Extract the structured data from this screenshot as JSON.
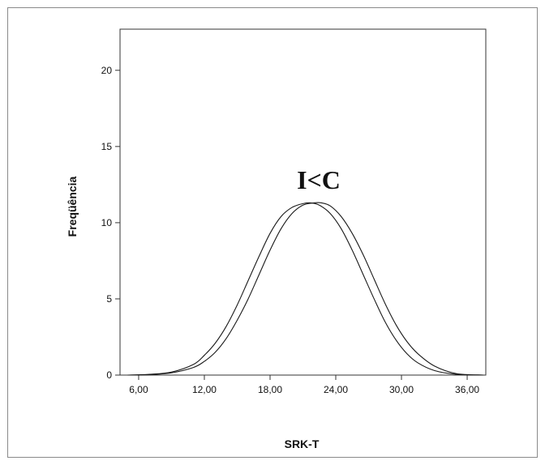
{
  "chart_data": {
    "type": "line",
    "title": "",
    "xlabel": "SRK-T",
    "ylabel": "Freqüência",
    "xlim": [
      4.3,
      37.7
    ],
    "ylim": [
      0,
      22.7
    ],
    "x_ticks": [
      {
        "value": 6,
        "label": "6,00"
      },
      {
        "value": 12,
        "label": "12,00"
      },
      {
        "value": 18,
        "label": "18,00"
      },
      {
        "value": 24,
        "label": "24,00"
      },
      {
        "value": 30,
        "label": "30,00"
      },
      {
        "value": 36,
        "label": "36,00"
      }
    ],
    "y_ticks": [
      {
        "value": 0,
        "label": "0"
      },
      {
        "value": 5,
        "label": "5"
      },
      {
        "value": 10,
        "label": "10"
      },
      {
        "value": 15,
        "label": "15"
      },
      {
        "value": 20,
        "label": "20"
      }
    ],
    "annotation": "I<C",
    "series": [
      {
        "style": "solid",
        "x": [
          5.0,
          7.0,
          9.0,
          11.0,
          12.0,
          13.0,
          14.0,
          15.0,
          16.0,
          17.0,
          18.0,
          19.0,
          20.0,
          21.0,
          21.7,
          22.5,
          23.5,
          24.5,
          25.5,
          26.5,
          27.5,
          28.5,
          29.5,
          30.5,
          31.5,
          33.0,
          35.0,
          37.5
        ],
        "y": [
          0.0,
          0.05,
          0.2,
          0.7,
          1.3,
          2.1,
          3.2,
          4.6,
          6.2,
          7.8,
          9.3,
          10.4,
          11.0,
          11.25,
          11.3,
          11.15,
          10.6,
          9.6,
          8.2,
          6.6,
          5.0,
          3.5,
          2.3,
          1.4,
          0.8,
          0.3,
          0.05,
          0.0
        ]
      },
      {
        "style": "solid",
        "x": [
          5.0,
          7.0,
          9.0,
          11.0,
          12.0,
          13.0,
          14.0,
          15.0,
          16.0,
          17.0,
          18.0,
          19.0,
          20.0,
          21.0,
          22.0,
          22.7,
          23.5,
          24.5,
          25.5,
          26.5,
          27.5,
          28.5,
          29.5,
          30.5,
          31.5,
          33.0,
          35.0,
          37.5
        ],
        "y": [
          0.0,
          0.03,
          0.15,
          0.5,
          0.9,
          1.5,
          2.4,
          3.6,
          5.0,
          6.6,
          8.2,
          9.6,
          10.6,
          11.15,
          11.3,
          11.3,
          11.1,
          10.4,
          9.3,
          7.9,
          6.3,
          4.7,
          3.3,
          2.2,
          1.4,
          0.6,
          0.1,
          0.0
        ]
      }
    ]
  }
}
